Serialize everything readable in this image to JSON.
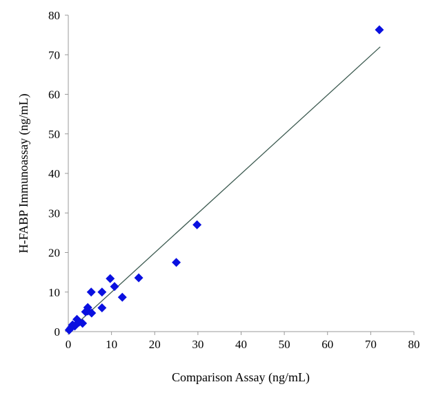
{
  "chart_data": {
    "type": "scatter",
    "title": "",
    "xlabel": "Comparison Assay (ng/mL)",
    "ylabel": "H-FABP Immunoassay (ng/mL)",
    "xlim": [
      0,
      80
    ],
    "ylim": [
      0,
      80
    ],
    "xticks": [
      "0",
      "10",
      "20",
      "30",
      "40",
      "50",
      "60",
      "70",
      "80"
    ],
    "yticks": [
      "0",
      "10",
      "20",
      "30",
      "40",
      "50",
      "60",
      "70",
      "80"
    ],
    "grid": false,
    "marker_color": "#0a10e0",
    "line_color": "#3c5a50",
    "points": [
      {
        "x": 0.2,
        "y": 0.4
      },
      {
        "x": 0.5,
        "y": 0.8
      },
      {
        "x": 0.8,
        "y": 1.2
      },
      {
        "x": 1.0,
        "y": 1.7
      },
      {
        "x": 1.5,
        "y": 1.4
      },
      {
        "x": 2.0,
        "y": 3.1
      },
      {
        "x": 2.5,
        "y": 2.4
      },
      {
        "x": 3.3,
        "y": 2.1
      },
      {
        "x": 4.0,
        "y": 5.0
      },
      {
        "x": 4.5,
        "y": 6.1
      },
      {
        "x": 4.5,
        "y": 5.2
      },
      {
        "x": 5.4,
        "y": 4.7
      },
      {
        "x": 5.3,
        "y": 10.0
      },
      {
        "x": 7.8,
        "y": 10.0
      },
      {
        "x": 7.8,
        "y": 6.0
      },
      {
        "x": 9.7,
        "y": 13.4
      },
      {
        "x": 10.7,
        "y": 11.4
      },
      {
        "x": 12.5,
        "y": 8.7
      },
      {
        "x": 16.3,
        "y": 13.6
      },
      {
        "x": 25.0,
        "y": 17.5
      },
      {
        "x": 29.8,
        "y": 27.0
      },
      {
        "x": 72.0,
        "y": 76.3
      }
    ],
    "fit_line": {
      "x": [
        0.5,
        72.2
      ],
      "y": [
        0.5,
        72.0
      ]
    }
  }
}
